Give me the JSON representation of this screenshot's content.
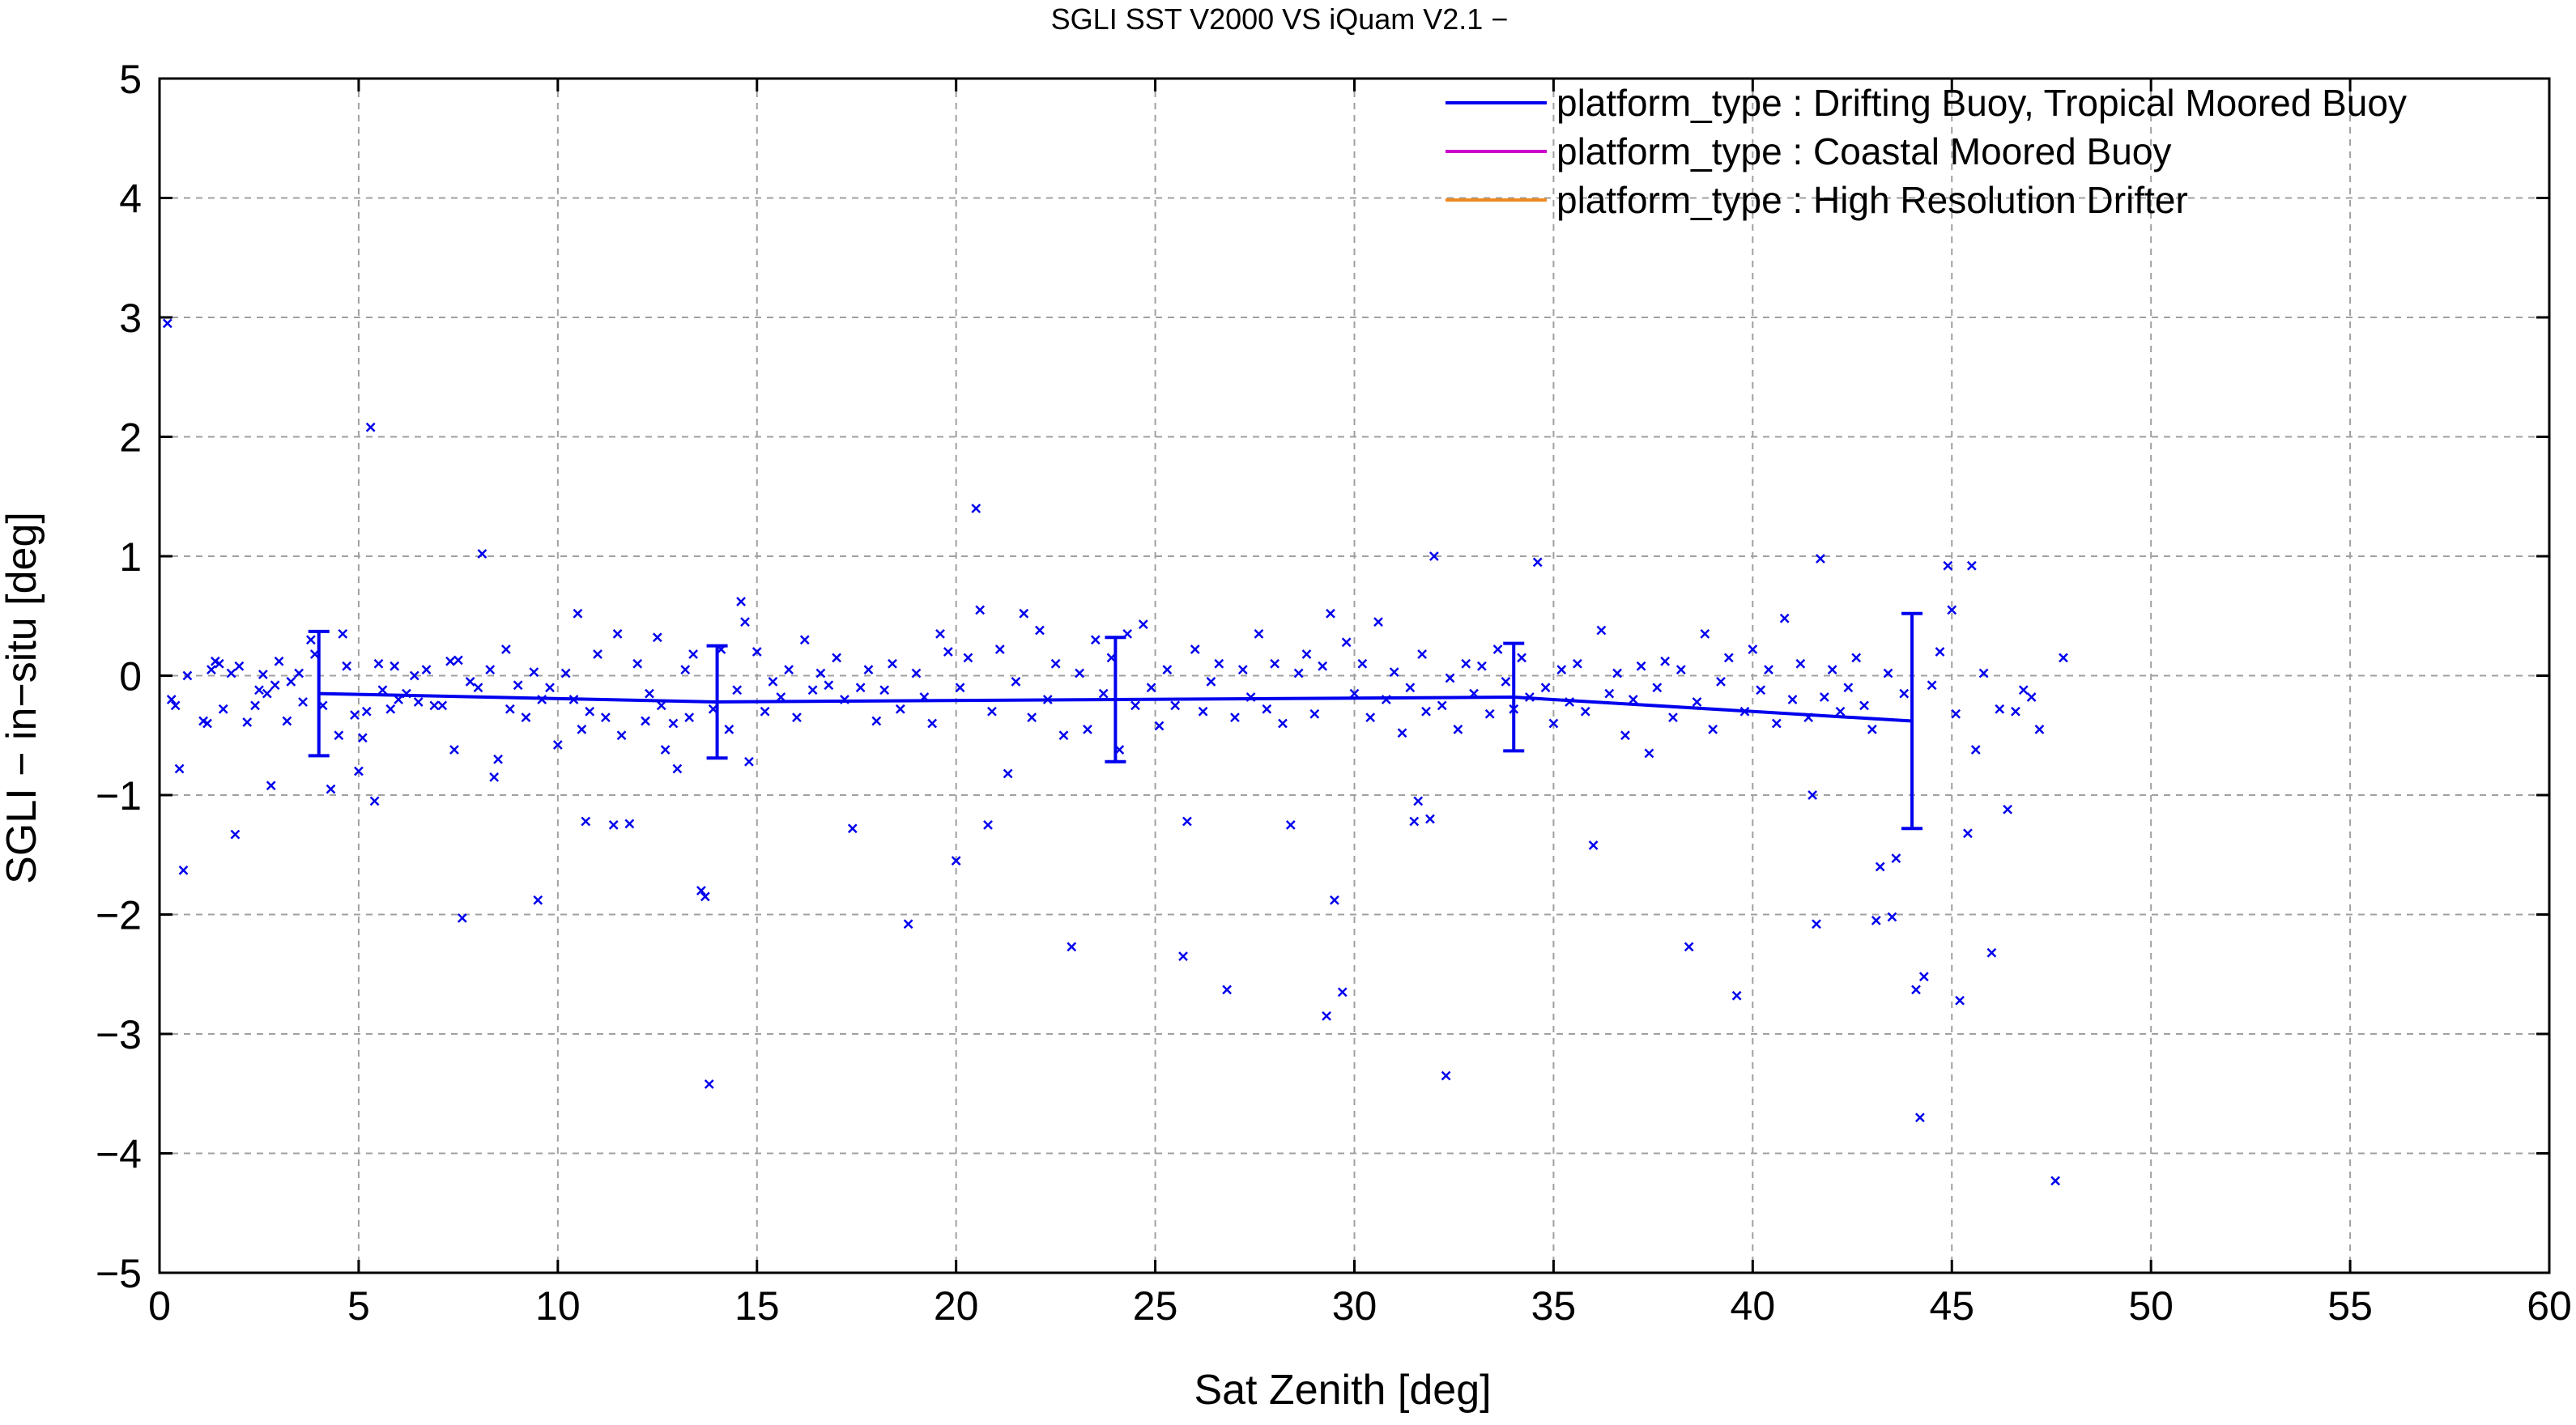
{
  "chart_data": {
    "type": "scatter",
    "title": "SGLI SST V2000 VS iQuam V2.1  −",
    "xlabel": "Sat Zenith [deg]",
    "ylabel": "SGLI − in−situ [deg]",
    "xlim": [
      0,
      60
    ],
    "ylim": [
      -5,
      5
    ],
    "x_ticks": [
      0,
      5,
      10,
      15,
      20,
      25,
      30,
      35,
      40,
      45,
      50,
      55,
      60
    ],
    "y_ticks": [
      -5,
      -4,
      -3,
      -2,
      -1,
      0,
      1,
      2,
      3,
      4,
      5
    ],
    "x_tick_labels": [
      "0",
      "5",
      "10",
      "15",
      "20",
      "25",
      "30",
      "35",
      "40",
      "45",
      "50",
      "55",
      "60"
    ],
    "y_tick_labels": [
      "−5",
      "−4",
      "−3",
      "−2",
      "−1",
      "0",
      "1",
      "2",
      "3",
      "4",
      "5"
    ],
    "grid": true,
    "legend_position": "top-right",
    "colors": {
      "blue": "#0000ee",
      "magenta": "#cc00cc",
      "orange": "#ee8822",
      "grid": "#a0a0a0"
    },
    "legend": [
      {
        "label": "platform_type : Drifting Buoy, Tropical Moored Buoy",
        "color": "#0000ee"
      },
      {
        "label": "platform_type : Coastal Moored Buoy",
        "color": "#cc00cc"
      },
      {
        "label": "platform_type : High Resolution Drifter",
        "color": "#ee8822"
      }
    ],
    "series": [
      {
        "type": "scatter",
        "marker": "x",
        "color": "#0000ee",
        "points": [
          [
            0.2,
            2.95
          ],
          [
            0.3,
            -0.2
          ],
          [
            0.4,
            -0.25
          ],
          [
            0.5,
            -0.78
          ],
          [
            0.6,
            -1.63
          ],
          [
            0.7,
            0.0
          ],
          [
            1.1,
            -0.38
          ],
          [
            1.2,
            -0.4
          ],
          [
            1.3,
            0.05
          ],
          [
            1.4,
            0.12
          ],
          [
            1.5,
            0.1
          ],
          [
            1.6,
            -0.28
          ],
          [
            1.8,
            0.02
          ],
          [
            1.9,
            -1.33
          ],
          [
            2.0,
            0.08
          ],
          [
            2.2,
            -0.39
          ],
          [
            2.4,
            -0.25
          ],
          [
            2.5,
            -0.12
          ],
          [
            2.6,
            0.01
          ],
          [
            2.7,
            -0.15
          ],
          [
            2.8,
            -0.92
          ],
          [
            2.9,
            -0.08
          ],
          [
            3.0,
            0.12
          ],
          [
            3.2,
            -0.38
          ],
          [
            3.3,
            -0.05
          ],
          [
            3.5,
            0.02
          ],
          [
            3.6,
            -0.22
          ],
          [
            3.8,
            0.3
          ],
          [
            3.9,
            0.18
          ],
          [
            4.1,
            -0.25
          ],
          [
            4.3,
            -0.95
          ],
          [
            4.5,
            -0.5
          ],
          [
            4.6,
            0.35
          ],
          [
            4.7,
            0.08
          ],
          [
            4.9,
            -0.33
          ],
          [
            5.0,
            -0.8
          ],
          [
            5.1,
            -0.52
          ],
          [
            5.2,
            -0.3
          ],
          [
            5.3,
            2.08
          ],
          [
            5.4,
            -1.05
          ],
          [
            5.5,
            0.1
          ],
          [
            5.6,
            -0.12
          ],
          [
            5.8,
            -0.28
          ],
          [
            5.9,
            0.08
          ],
          [
            6.0,
            -0.2
          ],
          [
            6.2,
            -0.15
          ],
          [
            6.4,
            0.0
          ],
          [
            6.5,
            -0.22
          ],
          [
            6.7,
            0.05
          ],
          [
            6.9,
            -0.25
          ],
          [
            7.1,
            -0.25
          ],
          [
            7.3,
            0.12
          ],
          [
            7.4,
            -0.62
          ],
          [
            7.5,
            0.13
          ],
          [
            7.6,
            -2.03
          ],
          [
            7.8,
            -0.05
          ],
          [
            8.0,
            -0.1
          ],
          [
            8.1,
            1.02
          ],
          [
            8.3,
            0.05
          ],
          [
            8.4,
            -0.85
          ],
          [
            8.5,
            -0.7
          ],
          [
            8.7,
            0.22
          ],
          [
            8.8,
            -0.28
          ],
          [
            9.0,
            -0.08
          ],
          [
            9.2,
            -0.35
          ],
          [
            9.4,
            0.03
          ],
          [
            9.5,
            -1.88
          ],
          [
            9.6,
            -0.2
          ],
          [
            9.8,
            -0.1
          ],
          [
            10.0,
            -0.58
          ],
          [
            10.2,
            0.02
          ],
          [
            10.4,
            -0.2
          ],
          [
            10.5,
            0.52
          ],
          [
            10.6,
            -0.45
          ],
          [
            10.7,
            -1.22
          ],
          [
            10.8,
            -0.3
          ],
          [
            11.0,
            0.18
          ],
          [
            11.2,
            -0.35
          ],
          [
            11.4,
            -1.25
          ],
          [
            11.5,
            0.35
          ],
          [
            11.6,
            -0.5
          ],
          [
            11.8,
            -1.24
          ],
          [
            12.0,
            0.1
          ],
          [
            12.2,
            -0.38
          ],
          [
            12.3,
            -0.15
          ],
          [
            12.5,
            0.32
          ],
          [
            12.6,
            -0.25
          ],
          [
            12.7,
            -0.62
          ],
          [
            12.9,
            -0.4
          ],
          [
            13.0,
            -0.78
          ],
          [
            13.2,
            0.05
          ],
          [
            13.3,
            -0.35
          ],
          [
            13.4,
            0.18
          ],
          [
            13.6,
            -1.8
          ],
          [
            13.7,
            -1.85
          ],
          [
            13.8,
            -3.42
          ],
          [
            13.9,
            -0.28
          ],
          [
            14.1,
            0.22
          ],
          [
            14.3,
            -0.45
          ],
          [
            14.5,
            -0.12
          ],
          [
            14.6,
            0.62
          ],
          [
            14.7,
            0.45
          ],
          [
            14.8,
            -0.72
          ],
          [
            15.0,
            0.2
          ],
          [
            15.2,
            -0.3
          ],
          [
            15.4,
            -0.05
          ],
          [
            15.6,
            -0.18
          ],
          [
            15.8,
            0.05
          ],
          [
            16.0,
            -0.35
          ],
          [
            16.2,
            0.3
          ],
          [
            16.4,
            -0.12
          ],
          [
            16.6,
            0.02
          ],
          [
            16.8,
            -0.08
          ],
          [
            17.0,
            0.15
          ],
          [
            17.2,
            -0.2
          ],
          [
            17.4,
            -1.28
          ],
          [
            17.6,
            -0.1
          ],
          [
            17.8,
            0.05
          ],
          [
            18.0,
            -0.38
          ],
          [
            18.2,
            -0.12
          ],
          [
            18.4,
            0.1
          ],
          [
            18.6,
            -0.28
          ],
          [
            18.8,
            -2.08
          ],
          [
            19.0,
            0.02
          ],
          [
            19.2,
            -0.18
          ],
          [
            19.4,
            -0.4
          ],
          [
            19.6,
            0.35
          ],
          [
            19.8,
            0.2
          ],
          [
            20.0,
            -1.55
          ],
          [
            20.1,
            -0.1
          ],
          [
            20.3,
            0.15
          ],
          [
            20.5,
            1.4
          ],
          [
            20.6,
            0.55
          ],
          [
            20.8,
            -1.25
          ],
          [
            20.9,
            -0.3
          ],
          [
            21.1,
            0.22
          ],
          [
            21.3,
            -0.82
          ],
          [
            21.5,
            -0.05
          ],
          [
            21.7,
            0.52
          ],
          [
            21.9,
            -0.35
          ],
          [
            22.1,
            0.38
          ],
          [
            22.3,
            -0.2
          ],
          [
            22.5,
            0.1
          ],
          [
            22.7,
            -0.5
          ],
          [
            22.9,
            -2.27
          ],
          [
            23.1,
            0.02
          ],
          [
            23.3,
            -0.45
          ],
          [
            23.5,
            0.3
          ],
          [
            23.7,
            -0.15
          ],
          [
            23.9,
            0.15
          ],
          [
            24.1,
            -0.62
          ],
          [
            24.3,
            0.35
          ],
          [
            24.5,
            -0.25
          ],
          [
            24.7,
            0.43
          ],
          [
            24.9,
            -0.1
          ],
          [
            25.1,
            -0.42
          ],
          [
            25.3,
            0.05
          ],
          [
            25.5,
            -0.25
          ],
          [
            25.7,
            -2.35
          ],
          [
            25.8,
            -1.22
          ],
          [
            26.0,
            0.22
          ],
          [
            26.2,
            -0.3
          ],
          [
            26.4,
            -0.05
          ],
          [
            26.6,
            0.1
          ],
          [
            26.8,
            -2.63
          ],
          [
            27.0,
            -0.35
          ],
          [
            27.2,
            0.05
          ],
          [
            27.4,
            -0.18
          ],
          [
            27.6,
            0.35
          ],
          [
            27.8,
            -0.28
          ],
          [
            28.0,
            0.1
          ],
          [
            28.2,
            -0.4
          ],
          [
            28.4,
            -1.25
          ],
          [
            28.6,
            0.02
          ],
          [
            28.8,
            0.18
          ],
          [
            29.0,
            -0.32
          ],
          [
            29.2,
            0.08
          ],
          [
            29.3,
            -2.85
          ],
          [
            29.4,
            0.52
          ],
          [
            29.5,
            -1.88
          ],
          [
            29.7,
            -2.65
          ],
          [
            29.8,
            0.28
          ],
          [
            30.0,
            -0.15
          ],
          [
            30.2,
            0.1
          ],
          [
            30.4,
            -0.35
          ],
          [
            30.6,
            0.45
          ],
          [
            30.8,
            -0.2
          ],
          [
            31.0,
            0.03
          ],
          [
            31.2,
            -0.48
          ],
          [
            31.4,
            -0.1
          ],
          [
            31.5,
            -1.22
          ],
          [
            31.6,
            -1.05
          ],
          [
            31.7,
            0.18
          ],
          [
            31.8,
            -0.3
          ],
          [
            31.9,
            -1.2
          ],
          [
            32.0,
            1.0
          ],
          [
            32.2,
            -0.25
          ],
          [
            32.3,
            -3.35
          ],
          [
            32.4,
            -0.02
          ],
          [
            32.6,
            -0.45
          ],
          [
            32.8,
            0.1
          ],
          [
            33.0,
            -0.15
          ],
          [
            33.2,
            0.08
          ],
          [
            33.4,
            -0.32
          ],
          [
            33.6,
            0.22
          ],
          [
            33.8,
            -0.05
          ],
          [
            34.0,
            -0.28
          ],
          [
            34.2,
            0.15
          ],
          [
            34.4,
            -0.18
          ],
          [
            34.6,
            0.95
          ],
          [
            34.8,
            -0.1
          ],
          [
            35.0,
            -0.4
          ],
          [
            35.2,
            0.05
          ],
          [
            35.4,
            -0.22
          ],
          [
            35.6,
            0.1
          ],
          [
            35.8,
            -0.3
          ],
          [
            36.0,
            -1.42
          ],
          [
            36.2,
            0.38
          ],
          [
            36.4,
            -0.15
          ],
          [
            36.6,
            0.02
          ],
          [
            36.8,
            -0.5
          ],
          [
            37.0,
            -0.2
          ],
          [
            37.2,
            0.08
          ],
          [
            37.4,
            -0.65
          ],
          [
            37.6,
            -0.1
          ],
          [
            37.8,
            0.12
          ],
          [
            38.0,
            -0.35
          ],
          [
            38.2,
            0.05
          ],
          [
            38.4,
            -2.27
          ],
          [
            38.6,
            -0.22
          ],
          [
            38.8,
            0.35
          ],
          [
            39.0,
            -0.45
          ],
          [
            39.2,
            -0.05
          ],
          [
            39.4,
            0.15
          ],
          [
            39.6,
            -2.68
          ],
          [
            39.8,
            -0.3
          ],
          [
            40.0,
            0.22
          ],
          [
            40.2,
            -0.12
          ],
          [
            40.4,
            0.05
          ],
          [
            40.6,
            -0.4
          ],
          [
            40.8,
            0.48
          ],
          [
            41.0,
            -0.2
          ],
          [
            41.2,
            0.1
          ],
          [
            41.4,
            -0.35
          ],
          [
            41.5,
            -1.0
          ],
          [
            41.6,
            -2.08
          ],
          [
            41.7,
            0.98
          ],
          [
            41.8,
            -0.18
          ],
          [
            42.0,
            0.05
          ],
          [
            42.2,
            -0.3
          ],
          [
            42.4,
            -0.1
          ],
          [
            42.6,
            0.15
          ],
          [
            42.8,
            -0.25
          ],
          [
            43.0,
            -0.45
          ],
          [
            43.1,
            -2.05
          ],
          [
            43.2,
            -1.6
          ],
          [
            43.4,
            0.02
          ],
          [
            43.5,
            -2.02
          ],
          [
            43.6,
            -1.53
          ],
          [
            43.8,
            -0.15
          ],
          [
            44.1,
            -2.63
          ],
          [
            44.2,
            -3.7
          ],
          [
            44.3,
            -2.52
          ],
          [
            44.5,
            -0.08
          ],
          [
            44.7,
            0.2
          ],
          [
            44.9,
            0.92
          ],
          [
            45.0,
            0.55
          ],
          [
            45.1,
            -0.32
          ],
          [
            45.2,
            -2.72
          ],
          [
            45.4,
            -1.32
          ],
          [
            45.5,
            0.92
          ],
          [
            45.6,
            -0.62
          ],
          [
            45.8,
            0.02
          ],
          [
            46.0,
            -2.32
          ],
          [
            46.2,
            -0.28
          ],
          [
            46.4,
            -1.12
          ],
          [
            46.6,
            -0.3
          ],
          [
            46.8,
            -0.12
          ],
          [
            47.0,
            -0.18
          ],
          [
            47.2,
            -0.45
          ],
          [
            47.6,
            -4.23
          ],
          [
            47.8,
            0.15
          ]
        ]
      },
      {
        "type": "line",
        "color": "#0000ee",
        "x": [
          4,
          14,
          24,
          34,
          44
        ],
        "y": [
          -0.15,
          -0.22,
          -0.2,
          -0.18,
          -0.38
        ],
        "error": [
          0.52,
          0.47,
          0.52,
          0.45,
          0.9
        ]
      }
    ]
  }
}
